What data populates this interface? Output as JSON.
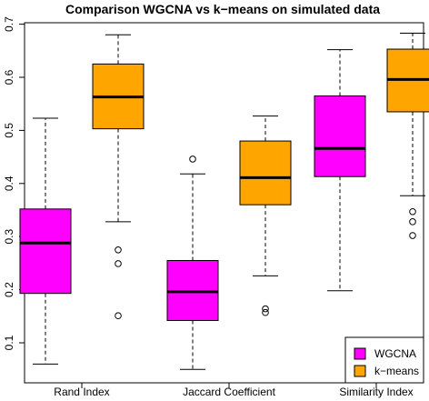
{
  "chart_data": {
    "type": "boxplot",
    "title": "Comparison WGCNA vs k−means on simulated data",
    "xlabel": "",
    "ylabel": "",
    "ylim": [
      0.05,
      0.7
    ],
    "yticks": [
      0.1,
      0.2,
      0.3,
      0.4,
      0.5,
      0.6,
      0.7
    ],
    "categories": [
      "Rand Index",
      "Jaccard Coefficient",
      "Similarity Index"
    ],
    "series": [
      {
        "name": "WGCNA",
        "color": "#ff00ff",
        "boxes": [
          {
            "whisker_low": 0.06,
            "q1": 0.193,
            "median": 0.288,
            "q3": 0.352,
            "whisker_high": 0.523,
            "outliers": []
          },
          {
            "whisker_low": 0.05,
            "q1": 0.142,
            "median": 0.196,
            "q3": 0.255,
            "whisker_high": 0.418,
            "outliers": [
              0.446
            ]
          },
          {
            "whisker_low": 0.198,
            "q1": 0.413,
            "median": 0.466,
            "q3": 0.565,
            "whisker_high": 0.652,
            "outliers": []
          }
        ]
      },
      {
        "name": "k−means",
        "color": "#ffa500",
        "boxes": [
          {
            "whisker_low": 0.328,
            "q1": 0.503,
            "median": 0.563,
            "q3": 0.625,
            "whisker_high": 0.68,
            "outliers": [
              0.275,
              0.249,
              0.151
            ]
          },
          {
            "whisker_low": 0.226,
            "q1": 0.36,
            "median": 0.411,
            "q3": 0.48,
            "whisker_high": 0.527,
            "outliers": [
              0.164,
              0.157
            ]
          },
          {
            "whisker_low": 0.377,
            "q1": 0.535,
            "median": 0.596,
            "q3": 0.653,
            "whisker_high": 0.683,
            "outliers": [
              0.347,
              0.328,
              0.302
            ]
          }
        ]
      }
    ],
    "legend": {
      "position": "bottom-right"
    }
  }
}
